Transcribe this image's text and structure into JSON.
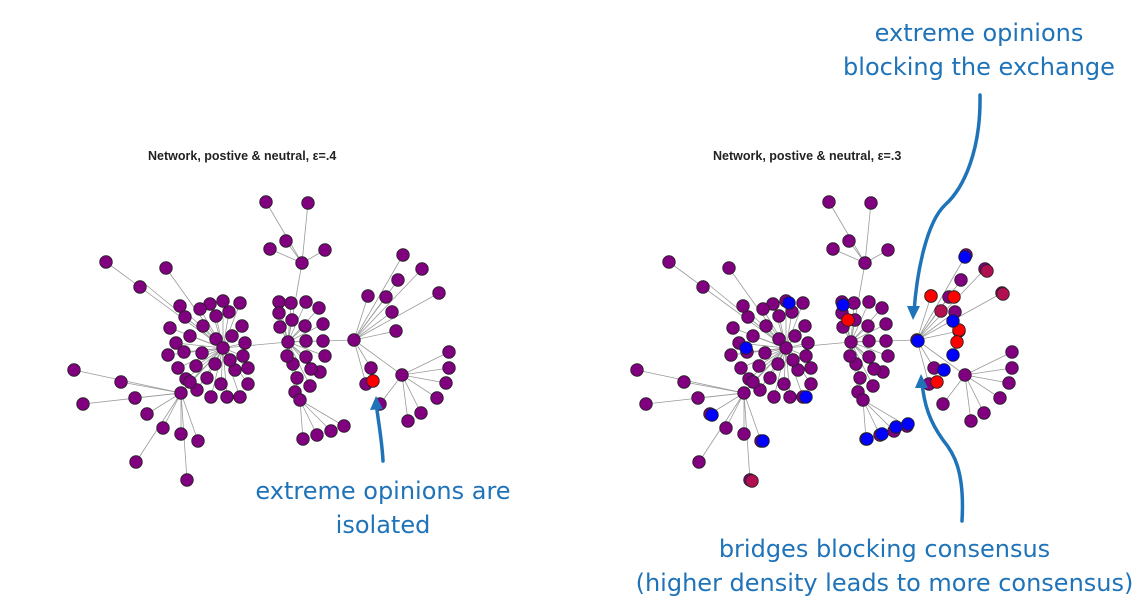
{
  "panels": {
    "left": {
      "title": "Network, postive & neutral, ε=.4"
    },
    "right": {
      "title": "Network, postive & neutral, ε=.3"
    }
  },
  "annotations": {
    "left_isolated": [
      "extreme opinions are",
      "isolated"
    ],
    "right_top": [
      "extreme opinions",
      "blocking the exchange"
    ],
    "right_bottom": [
      "bridges blocking consensus",
      "(higher density leads to more consensus)"
    ]
  },
  "colors": {
    "neutral_node": "#800080",
    "negative_node": "#0000ff",
    "positive_node": "#ff0000",
    "mixed_node": "#b0104f",
    "edge": "#9a9a9a",
    "annotation": "#1f73b8"
  }
}
